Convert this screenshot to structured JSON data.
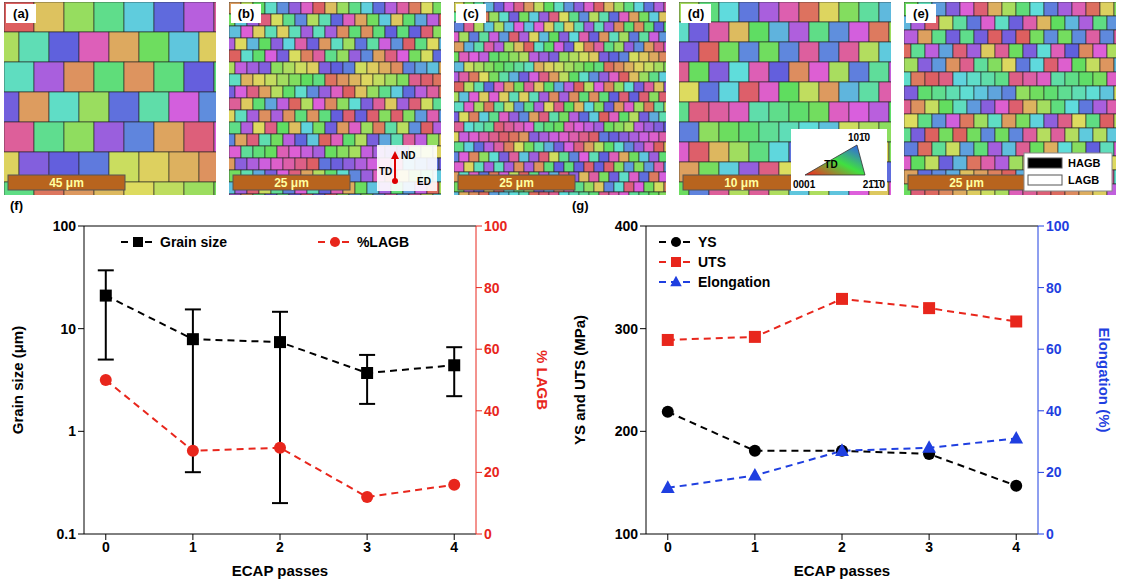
{
  "panels": [
    {
      "label": "(a)",
      "scale_bar": "45 μm"
    },
    {
      "label": "(b)",
      "scale_bar": "25 μm",
      "axes": [
        "ND",
        "TD",
        "ED"
      ]
    },
    {
      "label": "(c)",
      "scale_bar": "25 μm"
    },
    {
      "label": "(d)",
      "scale_bar": "10 μm",
      "ipf_key": {
        "title": "TD",
        "corners": [
          "0001",
          "101̄0",
          "21̄1̄0"
        ]
      }
    },
    {
      "label": "(e)",
      "scale_bar": "25 μm",
      "boundary_legend": [
        {
          "name": "HAGB",
          "color": "#000000"
        },
        {
          "name": "LAGB",
          "color": "#ffffff"
        }
      ]
    }
  ],
  "chart_data": [
    {
      "type": "line",
      "panel_label": "(f)",
      "x_label": "ECAP passes",
      "y_label": "Grain size (μm)",
      "y2_label": "% LAGB",
      "x": [
        0,
        1,
        2,
        3,
        4
      ],
      "xlim": [
        -0.25,
        4.25
      ],
      "xticks": [
        0,
        1,
        2,
        3,
        4
      ],
      "log": "y",
      "ylim": [
        0.1,
        100
      ],
      "yticks": [
        0.1,
        1,
        10,
        100
      ],
      "y2lim": [
        0,
        100
      ],
      "y2ticks": [
        0,
        20,
        40,
        60,
        80,
        100
      ],
      "legend": "top",
      "series": [
        {
          "name": "Grain size",
          "color": "#000000",
          "marker": "square",
          "line_style": "dashed",
          "values": [
            21,
            7.9,
            7.4,
            3.7,
            4.4
          ],
          "errors": [
            16,
            7.5,
            7.2,
            1.85,
            2.2
          ]
        },
        {
          "name": "%LAGB",
          "color": "#e8261c",
          "marker": "circle",
          "line_style": "dashed",
          "axis": "y2",
          "values": [
            50,
            27,
            28,
            12,
            16
          ]
        }
      ]
    },
    {
      "type": "line",
      "panel_label": "(g)",
      "x_label": "ECAP passes",
      "y_label": "YS and UTS (MPa)",
      "y2_label": "Elongation (%)",
      "x": [
        0,
        1,
        2,
        3,
        4
      ],
      "xlim": [
        -0.25,
        4.25
      ],
      "xticks": [
        0,
        1,
        2,
        3,
        4
      ],
      "ylim": [
        100,
        400
      ],
      "yticks": [
        100,
        200,
        300,
        400
      ],
      "y2lim": [
        0,
        100
      ],
      "y2ticks": [
        0,
        20,
        40,
        60,
        80,
        100
      ],
      "legend": "upper left",
      "series": [
        {
          "name": "YS",
          "color": "#000000",
          "marker": "circle",
          "line_style": "dashed",
          "values": [
            219,
            181,
            181,
            178,
            147
          ]
        },
        {
          "name": "UTS",
          "color": "#e8261c",
          "marker": "square",
          "line_style": "dashed",
          "values": [
            289,
            292,
            329,
            320,
            307
          ]
        },
        {
          "name": "Elongation",
          "color": "#1f3fe0",
          "marker": "triangle",
          "line_style": "dashed",
          "axis": "y2",
          "values": [
            15,
            19,
            27,
            28,
            31
          ]
        }
      ]
    }
  ]
}
